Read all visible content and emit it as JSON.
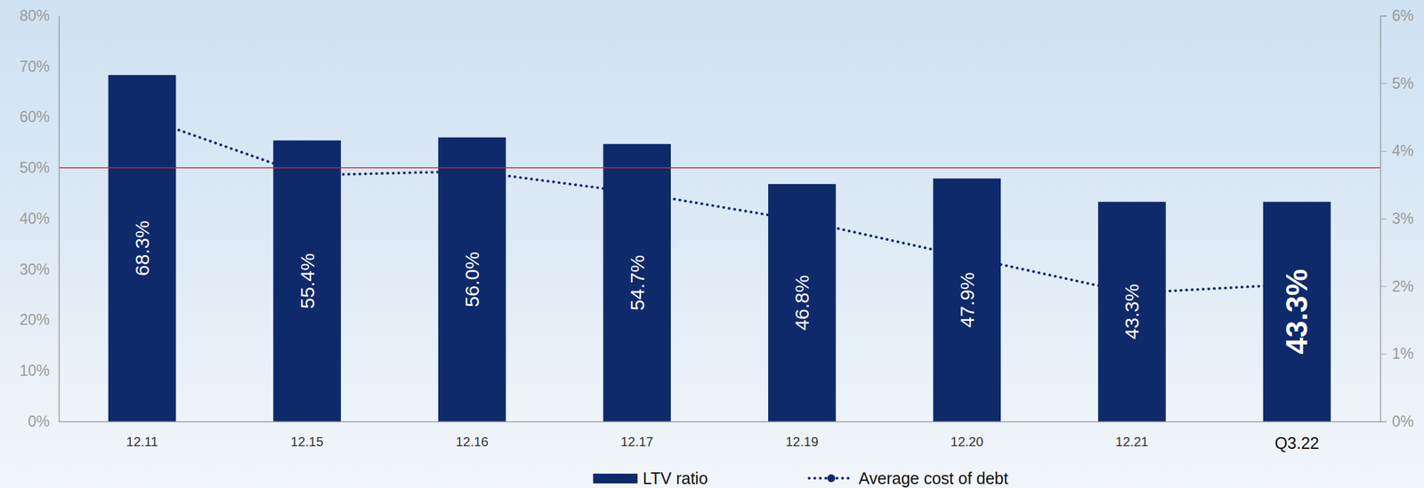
{
  "chart_data": {
    "type": "bar",
    "categories": [
      "12.11",
      "12.15",
      "12.16",
      "12.17",
      "12.19",
      "12.20",
      "12.21",
      "Q3.22"
    ],
    "series": [
      {
        "name": "LTV ratio",
        "type": "bar",
        "color": "#0f2a6b",
        "values": [
          68.3,
          55.4,
          56.0,
          54.7,
          46.8,
          47.9,
          43.3,
          43.3
        ],
        "value_labels": [
          "68.3%",
          "55.4%",
          "56.0%",
          "54.7%",
          "46.8%",
          "47.9%",
          "43.3%",
          "43.3%"
        ]
      },
      {
        "name": "Average cost of debt",
        "type": "line",
        "axis": "y2",
        "color": "#0f2a6b",
        "line_style": "dotted",
        "marker": "circle",
        "values": [
          4.5,
          3.64,
          3.7,
          3.38,
          2.97,
          2.43,
          1.9,
          2.03
        ]
      }
    ],
    "data_labels": true,
    "ylim": [
      0,
      80
    ],
    "yticks": [
      {
        "value": 0,
        "label": "0%"
      },
      {
        "value": 10,
        "label": "10%"
      },
      {
        "value": 20,
        "label": "20%"
      },
      {
        "value": 30,
        "label": "30%"
      },
      {
        "value": 40,
        "label": "40%"
      },
      {
        "value": 50,
        "label": "50%"
      },
      {
        "value": 60,
        "label": "60%"
      },
      {
        "value": 70,
        "label": "70%"
      },
      {
        "value": 80,
        "label": "80%"
      }
    ],
    "y2lim": [
      0,
      6
    ],
    "y2ticks": [
      {
        "value": 0,
        "label": "0%"
      },
      {
        "value": 1,
        "label": "1%"
      },
      {
        "value": 2,
        "label": "2%"
      },
      {
        "value": 3,
        "label": "3%"
      },
      {
        "value": 4,
        "label": "4%"
      },
      {
        "value": 5,
        "label": "5%"
      },
      {
        "value": 6,
        "label": "6%"
      }
    ],
    "reference_line": {
      "value": 50,
      "color": "#e02020"
    },
    "legend": "bottom",
    "grid": false
  }
}
